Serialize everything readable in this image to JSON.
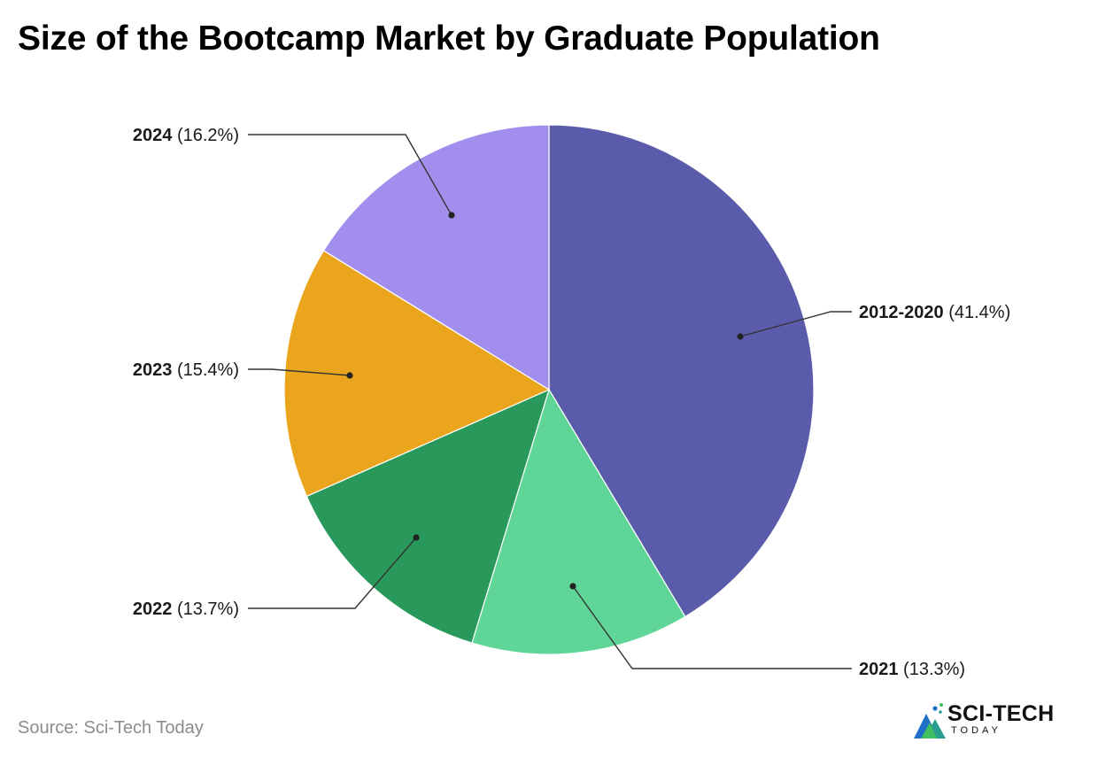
{
  "chart_data": {
    "type": "pie",
    "title": "Size of the Bootcamp Market by Graduate Population",
    "slices": [
      {
        "label": "2012-2020",
        "value": 41.4,
        "value_label": "(41.4%)",
        "color": "#5b5bab"
      },
      {
        "label": "2021",
        "value": 13.3,
        "value_label": "(13.3%)",
        "color": "#5fd697"
      },
      {
        "label": "2022",
        "value": 13.7,
        "value_label": "(13.7%)",
        "color": "#29995b"
      },
      {
        "label": "2023",
        "value": 15.4,
        "value_label": "(15.4%)",
        "color": "#eaa51d"
      },
      {
        "label": "2024",
        "value": 16.2,
        "value_label": "(16.2%)",
        "color": "#a28fed"
      }
    ],
    "start_angle": "top",
    "direction": "clockwise"
  },
  "footer": {
    "source": "Source: Sci-Tech Today"
  },
  "logo": {
    "name": "SCI-TECH",
    "sub": "TODAY",
    "icon": "sci-tech-logo-mark"
  }
}
